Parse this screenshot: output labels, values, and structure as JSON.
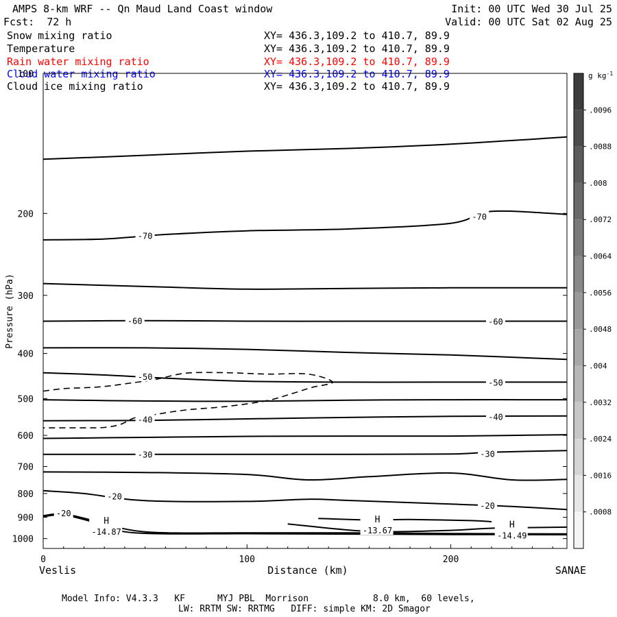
{
  "header": {
    "title": "AMPS 8-km WRF -- Qn Maud Land Coast window",
    "init": "Init: 00 UTC Wed 30 Jul 25",
    "fcst": "Fcst:  72 h",
    "valid": "Valid: 00 UTC Sat 02 Aug 25"
  },
  "fields": [
    {
      "name": "Snow mixing ratio",
      "xy": "XY= 436.3,109.2 to 410.7, 89.9",
      "color": "#000000"
    },
    {
      "name": "Temperature",
      "xy": "XY= 436.3,109.2 to 410.7, 89.9",
      "color": "#000000"
    },
    {
      "name": "Rain water mixing ratio",
      "xy": "XY= 436.3,109.2 to 410.7, 89.9",
      "color": "#ff0000"
    },
    {
      "name": "Cloud water mixing ratio",
      "xy": "XY= 436.3,109.2 to 410.7, 89.9",
      "color": "#0000ff"
    },
    {
      "name": "Cloud ice mixing ratio",
      "xy": "XY= 436.3,109.2 to 410.7, 89.9",
      "color": "#000000"
    }
  ],
  "axes": {
    "ylabel": "Pressure (hPa)",
    "xlabel": "Distance (km)",
    "left_end": "Veslis",
    "right_end": "SANAE"
  },
  "colorbar": {
    "unit": "g kg",
    "unit_exp": "-1",
    "ticks": [
      ".0096",
      ".0088",
      ".008",
      ".0072",
      ".0064",
      ".0056",
      ".0048",
      ".004",
      ".0032",
      ".0024",
      ".0016",
      ".0008"
    ]
  },
  "footer": {
    "line1": "Model Info: V4.3.3   KF      MYJ PBL  Morrison            8.0 km,  60 levels,",
    "line2": "LW: RRTM SW: RRTMG   DIFF: simple KM: 2D Smagor"
  },
  "chart_data": {
    "type": "contour",
    "x_range": [
      0,
      257
    ],
    "y_range": [
      100,
      1050
    ],
    "y_scale": "log",
    "x_ticks": [
      0,
      100,
      200
    ],
    "y_ticks": [
      100,
      200,
      300,
      400,
      500,
      600,
      700,
      800,
      900,
      1000
    ],
    "temperature_isotherms": [
      {
        "points": [
          [
            0,
            153
          ],
          [
            50,
            150
          ],
          [
            100,
            147
          ],
          [
            150,
            145
          ],
          [
            200,
            142
          ],
          [
            257,
            137
          ]
        ]
      },
      {
        "points": [
          [
            0,
            228
          ],
          [
            30,
            227
          ],
          [
            60,
            222
          ],
          [
            100,
            218
          ],
          [
            150,
            216
          ],
          [
            200,
            210
          ],
          [
            220,
            198
          ],
          [
            257,
            201
          ]
        ],
        "labels": [
          {
            "x": 50,
            "y": 223,
            "text": "-70"
          },
          {
            "x": 214,
            "y": 203,
            "text": "-70"
          }
        ]
      },
      {
        "points": [
          [
            0,
            283
          ],
          [
            60,
            288
          ],
          [
            100,
            291
          ],
          [
            150,
            290
          ],
          [
            200,
            289
          ],
          [
            257,
            289
          ]
        ]
      },
      {
        "points": [
          [
            0,
            341
          ],
          [
            50,
            340
          ],
          [
            100,
            341
          ],
          [
            150,
            341
          ],
          [
            200,
            341
          ],
          [
            257,
            341
          ]
        ],
        "labels": [
          {
            "x": 45,
            "y": 340,
            "text": "-60"
          },
          {
            "x": 222,
            "y": 341,
            "text": "-60"
          }
        ]
      },
      {
        "points": [
          [
            0,
            389
          ],
          [
            50,
            389
          ],
          [
            100,
            392
          ],
          [
            150,
            398
          ],
          [
            200,
            403
          ],
          [
            257,
            412
          ]
        ]
      },
      {
        "points": [
          [
            0,
            440
          ],
          [
            30,
            445
          ],
          [
            60,
            452
          ],
          [
            100,
            459
          ],
          [
            150,
            461
          ],
          [
            200,
            461
          ],
          [
            257,
            461
          ]
        ],
        "labels": [
          {
            "x": 50,
            "y": 448,
            "text": "-50"
          },
          {
            "x": 222,
            "y": 461,
            "text": "-50"
          }
        ]
      },
      {
        "points": [
          [
            0,
            503
          ],
          [
            50,
            506
          ],
          [
            100,
            507
          ],
          [
            150,
            504
          ],
          [
            200,
            503
          ],
          [
            257,
            503
          ]
        ]
      },
      {
        "points": [
          [
            0,
            558
          ],
          [
            50,
            557
          ],
          [
            100,
            553
          ],
          [
            150,
            549
          ],
          [
            200,
            546
          ],
          [
            257,
            545
          ]
        ],
        "labels": [
          {
            "x": 50,
            "y": 554,
            "text": "-40"
          },
          {
            "x": 222,
            "y": 546,
            "text": "-40"
          }
        ]
      },
      {
        "points": [
          [
            0,
            609
          ],
          [
            50,
            606
          ],
          [
            100,
            603
          ],
          [
            150,
            602
          ],
          [
            200,
            602
          ],
          [
            257,
            598
          ]
        ]
      },
      {
        "points": [
          [
            0,
            659
          ],
          [
            50,
            659
          ],
          [
            100,
            659
          ],
          [
            150,
            659
          ],
          [
            200,
            658
          ],
          [
            220,
            652
          ],
          [
            257,
            647
          ]
        ],
        "labels": [
          {
            "x": 50,
            "y": 659,
            "text": "-30"
          },
          {
            "x": 218,
            "y": 656,
            "text": "-30"
          }
        ]
      },
      {
        "points": [
          [
            0,
            719
          ],
          [
            50,
            721
          ],
          [
            100,
            728
          ],
          [
            130,
            748
          ],
          [
            160,
            736
          ],
          [
            200,
            723
          ],
          [
            230,
            748
          ],
          [
            257,
            746
          ]
        ]
      },
      {
        "points": [
          [
            0,
            789
          ],
          [
            20,
            800
          ],
          [
            50,
            829
          ],
          [
            100,
            832
          ],
          [
            130,
            823
          ],
          [
            150,
            828
          ],
          [
            200,
            843
          ],
          [
            230,
            853
          ],
          [
            257,
            866
          ]
        ],
        "labels": [
          {
            "x": 35,
            "y": 810,
            "text": "-20"
          },
          {
            "x": 218,
            "y": 848,
            "text": "-20"
          }
        ]
      },
      {
        "points": [
          [
            0,
            893
          ],
          [
            10,
            885
          ],
          [
            25,
            915
          ],
          [
            50,
            967
          ],
          [
            100,
            972
          ],
          [
            150,
            972
          ],
          [
            200,
            975
          ],
          [
            257,
            977
          ]
        ],
        "labels": [
          {
            "x": 10,
            "y": 880,
            "text": "-20"
          }
        ]
      },
      {
        "points": [
          [
            0,
            897
          ],
          [
            10,
            890
          ],
          [
            25,
            922
          ],
          [
            45,
            972
          ],
          [
            100,
            976
          ],
          [
            150,
            978
          ],
          [
            200,
            980
          ],
          [
            257,
            981
          ]
        ]
      },
      {
        "points": [
          [
            120,
            930
          ],
          [
            160,
            965
          ],
          [
            200,
            960
          ],
          [
            220,
            950
          ],
          [
            257,
            945
          ]
        ]
      },
      {
        "points": [
          [
            135,
            905
          ],
          [
            160,
            912
          ],
          [
            180,
            910
          ],
          [
            210,
            915
          ],
          [
            220,
            920
          ]
        ]
      }
    ],
    "highs": [
      {
        "x": 30,
        "y": 929,
        "value": "-14.87"
      },
      {
        "x": 163,
        "y": 923,
        "value": "-13.67"
      },
      {
        "x": 229,
        "y": 946,
        "value": "-14.49"
      }
    ],
    "mixing_ratio_contours": [
      {
        "style": "dashed",
        "points": [
          [
            0,
            482
          ],
          [
            10,
            476
          ],
          [
            20,
            474
          ],
          [
            30,
            471
          ],
          [
            40,
            465
          ],
          [
            55,
            455
          ],
          [
            70,
            441
          ],
          [
            90,
            440
          ],
          [
            110,
            443
          ],
          [
            130,
            443
          ],
          [
            142,
            461
          ],
          [
            132,
            473
          ],
          [
            122,
            488
          ],
          [
            110,
            505
          ],
          [
            90,
            520
          ],
          [
            70,
            529
          ],
          [
            55,
            541
          ],
          [
            45,
            550
          ],
          [
            38,
            568
          ],
          [
            30,
            577
          ],
          [
            20,
            578
          ],
          [
            0,
            578
          ]
        ]
      }
    ]
  }
}
